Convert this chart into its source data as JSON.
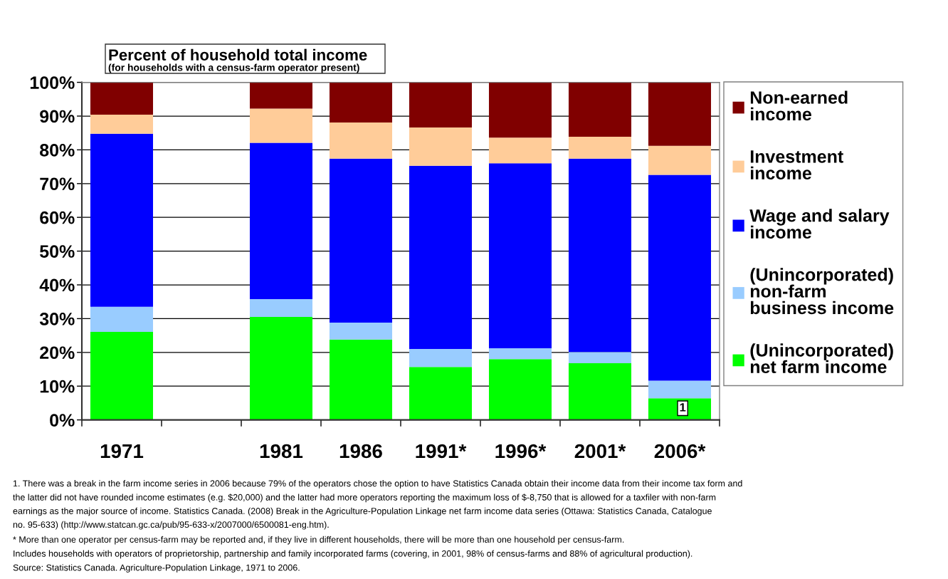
{
  "chart_data": {
    "type": "bar",
    "stacked": true,
    "title": "Percent of household total income",
    "subtitle": "(for households with a census-farm operator present)",
    "categories": [
      "1971",
      null,
      "1981",
      "1986",
      "1991*",
      "1996*",
      "2001*",
      "2006*"
    ],
    "series": [
      {
        "name": "(Unincorporated)\nnet farm income",
        "color": "#00ff00",
        "values": [
          26.1,
          null,
          30.5,
          23.8,
          15.7,
          18.0,
          16.8,
          6.4
        ]
      },
      {
        "name": "(Unincorporated)\nnon-farm\nbusiness income",
        "color": "#99ccff",
        "values": [
          7.4,
          null,
          5.3,
          5.0,
          5.3,
          3.2,
          3.3,
          5.2
        ]
      },
      {
        "name": "Wage and salary\nincome",
        "color": "#0000ff",
        "values": [
          51.3,
          null,
          46.3,
          48.6,
          54.3,
          54.8,
          57.3,
          61.0
        ]
      },
      {
        "name": "Investment\nincome",
        "color": "#ffcc99",
        "values": [
          5.6,
          null,
          10.1,
          10.7,
          11.3,
          7.6,
          6.5,
          8.6
        ]
      },
      {
        "name": "Non-earned\nincome",
        "color": "#800000",
        "values": [
          9.6,
          null,
          7.8,
          11.9,
          13.4,
          16.4,
          16.1,
          18.8
        ]
      }
    ],
    "ylim": [
      0,
      100
    ],
    "yticks": [
      {
        "value": 0,
        "label": "0%"
      },
      {
        "value": 10,
        "label": "10%"
      },
      {
        "value": 20,
        "label": "20%"
      },
      {
        "value": 30,
        "label": "30%"
      },
      {
        "value": 40,
        "label": "40%"
      },
      {
        "value": 50,
        "label": "50%"
      },
      {
        "value": 60,
        "label": "60%"
      },
      {
        "value": 70,
        "label": "70%"
      },
      {
        "value": 80,
        "label": "80%"
      },
      {
        "value": 90,
        "label": "90%"
      },
      {
        "value": 100,
        "label": "100%"
      }
    ],
    "grid": "y",
    "legend": "right",
    "annotations": [
      {
        "text": "1",
        "x": "2006*",
        "y": 6.4
      },
      "1. There was a break in the farm income series in 2006 because 79% of the operators chose the option to have Statistics Canada obtain their income data from their income tax form and\nthe latter did not have rounded income estimates (e.g. $20,000) and the latter had more operators reporting the maximum loss of $-8,750 that is allowed for a taxfiler with non-farm\nearnings as the major source of income. Statistics Canada. (2008) Break in the Agriculture-Population Linkage net farm income data series (Ottawa: Statistics Canada, Catalogue\nno. 95-633) (http://www.statcan.gc.ca/pub/95-633-x/2007000/6500081-eng.htm).",
      "* More than one operator per census-farm may be reported and, if they live in different households, there will be more than one household per census-farm.",
      "Includes households with operators of proprietorship, partnership and family incorporated farms (covering, in 2001, 98% of census-farms and 88% of agricultural production).",
      "Source: Statistics Canada. Agriculture-Population Linkage, 1971 to 2006."
    ]
  }
}
